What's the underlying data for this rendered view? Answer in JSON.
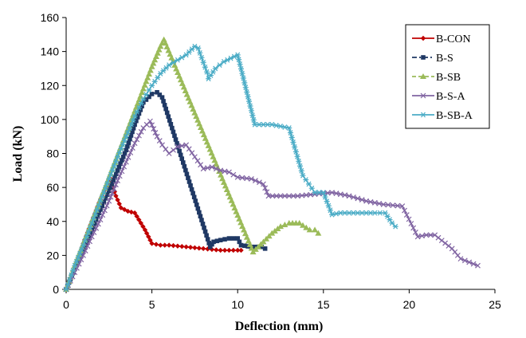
{
  "chart_data": {
    "type": "line",
    "xlabel": "Deflection (mm)",
    "ylabel": "Load (kN)",
    "xlim": [
      0,
      25
    ],
    "ylim": [
      0,
      160
    ],
    "xticks": [
      0,
      5,
      10,
      15,
      20,
      25
    ],
    "yticks": [
      0,
      20,
      40,
      60,
      80,
      100,
      120,
      140,
      160
    ],
    "grid": false,
    "legend_position": "top-right",
    "series": [
      {
        "name": "B-CON",
        "color": "#c00000",
        "dash": "solid",
        "marker": "diamond",
        "points": [
          [
            0,
            0
          ],
          [
            0.5,
            13
          ],
          [
            1.0,
            27
          ],
          [
            1.5,
            40
          ],
          [
            2.0,
            53
          ],
          [
            2.6,
            65
          ],
          [
            2.9,
            55
          ],
          [
            3.2,
            48
          ],
          [
            3.6,
            46
          ],
          [
            4.0,
            45
          ],
          [
            4.6,
            35
          ],
          [
            5.0,
            27
          ],
          [
            5.5,
            26
          ],
          [
            6.0,
            26
          ],
          [
            7.0,
            25
          ],
          [
            8.0,
            24
          ],
          [
            9.0,
            23
          ],
          [
            10.0,
            23
          ],
          [
            10.2,
            23
          ]
        ]
      },
      {
        "name": "B-S",
        "color": "#1f3864",
        "dash": "dashdot",
        "marker": "square",
        "points": [
          [
            0,
            0
          ],
          [
            0.5,
            12
          ],
          [
            1.0,
            23
          ],
          [
            1.5,
            35
          ],
          [
            2.0,
            47
          ],
          [
            2.5,
            58
          ],
          [
            3.0,
            70
          ],
          [
            3.5,
            82
          ],
          [
            4.0,
            97
          ],
          [
            4.5,
            110
          ],
          [
            5.0,
            115
          ],
          [
            5.3,
            116
          ],
          [
            5.6,
            113
          ],
          [
            8.4,
            25
          ],
          [
            8.6,
            28
          ],
          [
            9.0,
            29
          ],
          [
            9.5,
            30
          ],
          [
            10.0,
            30
          ],
          [
            10.2,
            26
          ],
          [
            10.8,
            25
          ],
          [
            11.4,
            25
          ],
          [
            11.6,
            24
          ]
        ]
      },
      {
        "name": "B-SB",
        "color": "#9bbb59",
        "dash": "dashed",
        "marker": "triangle",
        "points": [
          [
            0,
            0
          ],
          [
            0.5,
            14
          ],
          [
            1.0,
            27
          ],
          [
            1.5,
            40
          ],
          [
            2.0,
            53
          ],
          [
            2.5,
            66
          ],
          [
            3.0,
            79
          ],
          [
            3.5,
            92
          ],
          [
            4.0,
            105
          ],
          [
            4.5,
            118
          ],
          [
            5.0,
            131
          ],
          [
            5.5,
            143
          ],
          [
            5.7,
            147
          ],
          [
            10.9,
            22
          ],
          [
            11.5,
            28
          ],
          [
            12.0,
            33
          ],
          [
            12.5,
            37
          ],
          [
            13.0,
            39
          ],
          [
            13.6,
            39
          ],
          [
            14.2,
            35
          ],
          [
            14.5,
            35
          ],
          [
            14.7,
            33
          ]
        ]
      },
      {
        "name": "B-S-A",
        "color": "#8064a2",
        "dash": "solid",
        "marker": "x",
        "points": [
          [
            0,
            0
          ],
          [
            0.5,
            10
          ],
          [
            1.0,
            20
          ],
          [
            1.5,
            31
          ],
          [
            2.0,
            41
          ],
          [
            2.5,
            52
          ],
          [
            3.0,
            64
          ],
          [
            3.5,
            75
          ],
          [
            4.0,
            86
          ],
          [
            4.5,
            95
          ],
          [
            4.9,
            99
          ],
          [
            5.3,
            90
          ],
          [
            5.6,
            85
          ],
          [
            6.0,
            80
          ],
          [
            6.5,
            84
          ],
          [
            7.0,
            85
          ],
          [
            7.5,
            78
          ],
          [
            8.0,
            71
          ],
          [
            8.5,
            72
          ],
          [
            9.0,
            70
          ],
          [
            9.5,
            69
          ],
          [
            10.0,
            66
          ],
          [
            10.8,
            65
          ],
          [
            11.5,
            62
          ],
          [
            11.8,
            55
          ],
          [
            12.5,
            55
          ],
          [
            13.5,
            55
          ],
          [
            14.5,
            56
          ],
          [
            15.5,
            57
          ],
          [
            16.5,
            55
          ],
          [
            17.5,
            52
          ],
          [
            18.5,
            50
          ],
          [
            19.6,
            49
          ],
          [
            20.5,
            31
          ],
          [
            21.0,
            32
          ],
          [
            21.5,
            32
          ],
          [
            22.5,
            24
          ],
          [
            23.0,
            18
          ],
          [
            23.5,
            16
          ],
          [
            24.0,
            14
          ]
        ]
      },
      {
        "name": "B-SB-A",
        "color": "#4bacc6",
        "dash": "solid",
        "marker": "star",
        "points": [
          [
            0,
            0
          ],
          [
            0.5,
            14
          ],
          [
            1.0,
            26
          ],
          [
            1.5,
            39
          ],
          [
            2.0,
            52
          ],
          [
            2.5,
            65
          ],
          [
            3.0,
            78
          ],
          [
            3.5,
            90
          ],
          [
            4.0,
            102
          ],
          [
            4.5,
            112
          ],
          [
            5.0,
            120
          ],
          [
            5.5,
            127
          ],
          [
            6.0,
            132
          ],
          [
            6.5,
            135
          ],
          [
            7.0,
            138
          ],
          [
            7.5,
            143
          ],
          [
            7.7,
            142
          ],
          [
            8.2,
            128
          ],
          [
            8.3,
            124
          ],
          [
            8.7,
            130
          ],
          [
            9.2,
            134
          ],
          [
            9.6,
            136
          ],
          [
            10.0,
            138
          ],
          [
            11.0,
            97
          ],
          [
            12.0,
            97
          ],
          [
            13.0,
            95
          ],
          [
            13.8,
            67
          ],
          [
            14.5,
            57
          ],
          [
            15.0,
            57
          ],
          [
            15.5,
            44
          ],
          [
            16.0,
            45
          ],
          [
            17.0,
            45
          ],
          [
            18.0,
            45
          ],
          [
            18.6,
            45
          ],
          [
            19.0,
            39
          ],
          [
            19.2,
            37
          ]
        ]
      }
    ]
  }
}
